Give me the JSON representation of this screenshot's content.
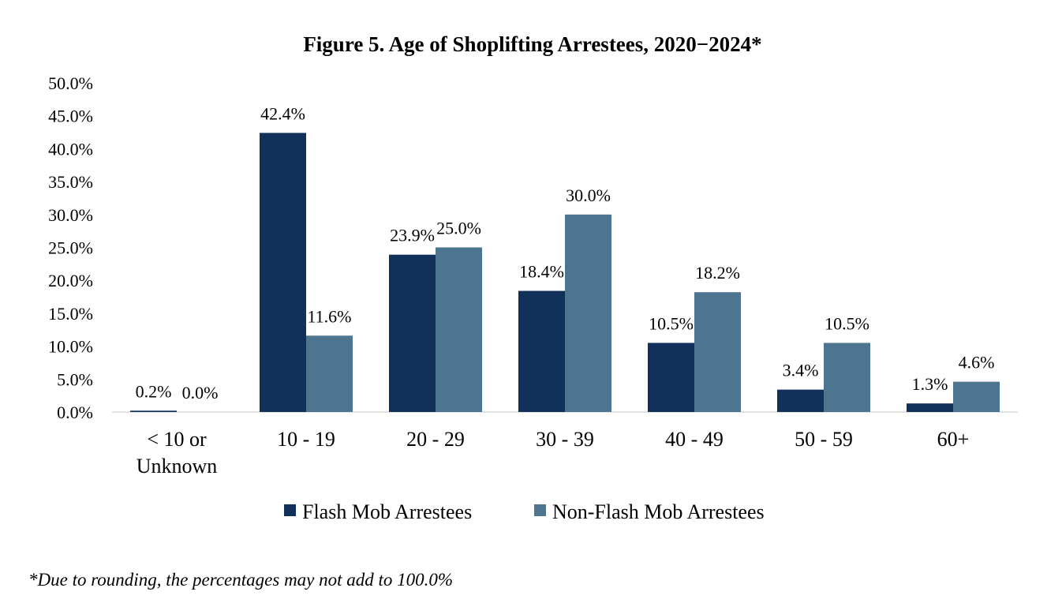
{
  "chart_data": {
    "type": "bar",
    "title": "Figure 5. Age of Shoplifting Arrestees, 2020−2024*",
    "categories": [
      [
        "< 10 or",
        "Unknown"
      ],
      [
        "10 - 19"
      ],
      [
        "20 - 29"
      ],
      [
        "30 - 39"
      ],
      [
        "40 - 49"
      ],
      [
        "50 - 59"
      ],
      [
        "60+"
      ]
    ],
    "series": [
      {
        "name": "Flash Mob Arrestees",
        "color": "#12315a",
        "values": [
          0.2,
          42.4,
          23.9,
          18.4,
          10.5,
          3.4,
          1.3
        ],
        "labels": [
          "0.2%",
          "42.4%",
          "23.9%",
          "18.4%",
          "10.5%",
          "3.4%",
          "1.3%"
        ]
      },
      {
        "name": "Non-Flash Mob Arrestees",
        "color": "#4e7590",
        "values": [
          0.0,
          11.6,
          25.0,
          30.0,
          18.2,
          10.5,
          4.6
        ],
        "labels": [
          "0.0%",
          "11.6%",
          "25.0%",
          "30.0%",
          "18.2%",
          "10.5%",
          "4.6%"
        ]
      }
    ],
    "ylim": [
      0,
      50
    ],
    "yticks": [
      "0.0%",
      "5.0%",
      "10.0%",
      "15.0%",
      "20.0%",
      "25.0%",
      "30.0%",
      "35.0%",
      "40.0%",
      "45.0%",
      "50.0%"
    ],
    "grid": false,
    "legend": "bottom",
    "xlabel": "",
    "ylabel": ""
  },
  "footnote": "*Due to rounding, the percentages may not add to 100.0%"
}
